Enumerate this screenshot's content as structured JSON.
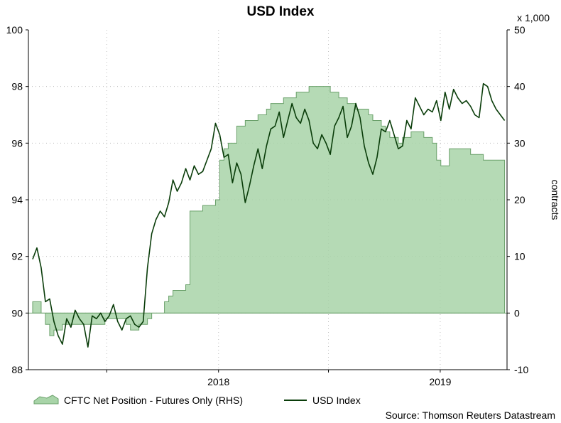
{
  "chart_data": {
    "type": "line",
    "title": "USD Index",
    "source": "Source: Thomson Reuters Datastream",
    "x_tick_labels": [
      "2018",
      "2019"
    ],
    "left_axis": {
      "ylim": [
        88,
        100
      ],
      "ticks": [
        "88",
        "90",
        "92",
        "94",
        "96",
        "98",
        "100"
      ]
    },
    "right_axis": {
      "ylim": [
        -10,
        50
      ],
      "ticks": [
        "-10",
        "0",
        "10",
        "20",
        "30",
        "40",
        "50"
      ],
      "ylabel": "contracts",
      "multiplier": "x 1,000"
    },
    "grid": true,
    "legend_position": "bottom",
    "series": [
      {
        "name": "CFTC Net Position - Futures Only (RHS)",
        "type": "area",
        "axis": "right",
        "color": "#a8d4a8",
        "x": [
          "2017-03-01",
          "2017-03-08",
          "2017-03-15",
          "2017-03-22",
          "2017-03-29",
          "2017-04-05",
          "2017-04-12",
          "2017-04-19",
          "2017-04-26",
          "2017-05-03",
          "2017-05-10",
          "2017-05-17",
          "2017-05-24",
          "2017-05-31",
          "2017-06-07",
          "2017-06-14",
          "2017-06-21",
          "2017-06-28",
          "2017-07-05",
          "2017-07-12",
          "2017-07-19",
          "2017-07-26",
          "2017-08-02",
          "2017-08-09",
          "2017-08-16",
          "2017-08-23",
          "2017-08-30",
          "2017-09-06",
          "2017-09-13",
          "2017-09-20",
          "2017-09-27",
          "2017-10-04",
          "2017-10-11",
          "2017-10-18",
          "2017-10-25",
          "2017-11-01",
          "2017-11-08",
          "2017-11-15",
          "2017-11-22",
          "2017-11-29",
          "2017-12-06",
          "2017-12-13",
          "2017-12-20",
          "2017-12-27",
          "2018-01-03",
          "2018-01-10",
          "2018-01-17",
          "2018-01-24",
          "2018-01-31",
          "2018-02-07",
          "2018-02-14",
          "2018-02-21",
          "2018-02-28",
          "2018-03-07",
          "2018-03-14",
          "2018-03-21",
          "2018-03-28",
          "2018-04-04",
          "2018-04-11",
          "2018-04-18",
          "2018-04-25",
          "2018-05-02",
          "2018-05-09",
          "2018-05-16",
          "2018-05-23",
          "2018-05-30",
          "2018-06-06",
          "2018-06-13",
          "2018-06-20",
          "2018-06-27",
          "2018-07-04",
          "2018-07-11",
          "2018-07-18",
          "2018-07-25",
          "2018-08-01",
          "2018-08-08",
          "2018-08-15",
          "2018-08-22",
          "2018-08-29",
          "2018-09-05",
          "2018-09-12",
          "2018-09-19",
          "2018-09-26",
          "2018-10-03",
          "2018-10-10",
          "2018-10-17",
          "2018-10-24",
          "2018-10-31",
          "2018-11-07",
          "2018-11-14",
          "2018-11-21",
          "2018-11-28",
          "2018-12-05",
          "2018-12-12",
          "2018-12-19",
          "2018-12-26",
          "2019-01-02",
          "2019-01-09",
          "2019-01-16",
          "2019-01-23",
          "2019-01-30",
          "2019-02-06",
          "2019-02-13",
          "2019-02-20",
          "2019-02-27",
          "2019-03-06",
          "2019-03-13",
          "2019-03-20",
          "2019-03-27",
          "2019-04-03",
          "2019-04-10",
          "2019-04-17"
        ],
        "values": [
          2,
          2,
          0,
          -2,
          -4,
          -3,
          -3,
          -2,
          -2,
          -2,
          -2,
          -2,
          -2,
          -2,
          -2,
          -2,
          -2,
          -1,
          -1,
          -1,
          -1,
          -1,
          -2,
          -3,
          -3,
          -2,
          -2,
          -1,
          0,
          0,
          0,
          2,
          3,
          4,
          4,
          4,
          5,
          18,
          18,
          18,
          19,
          19,
          19,
          20,
          27,
          29,
          30,
          30,
          33,
          33,
          34,
          34,
          34,
          35,
          35,
          36,
          37,
          37,
          37,
          38,
          38,
          38,
          39,
          39,
          39,
          40,
          40,
          40,
          40,
          40,
          39,
          39,
          38,
          38,
          37,
          37,
          36,
          36,
          36,
          35,
          34,
          34,
          33,
          32,
          31,
          31,
          30,
          31,
          31,
          32,
          32,
          32,
          31,
          31,
          30,
          27,
          26,
          26,
          29,
          29,
          29,
          29,
          29,
          28,
          28,
          28,
          27,
          27,
          27,
          27,
          27,
          26
        ]
      },
      {
        "name": "USD Index",
        "type": "line",
        "axis": "left",
        "color": "#0a3d0a",
        "x": [
          "2017-03-01",
          "2017-03-08",
          "2017-03-15",
          "2017-03-22",
          "2017-03-29",
          "2017-04-05",
          "2017-04-12",
          "2017-04-19",
          "2017-04-26",
          "2017-05-03",
          "2017-05-10",
          "2017-05-17",
          "2017-05-24",
          "2017-05-31",
          "2017-06-07",
          "2017-06-14",
          "2017-06-21",
          "2017-06-28",
          "2017-07-05",
          "2017-07-12",
          "2017-07-19",
          "2017-07-26",
          "2017-08-02",
          "2017-08-09",
          "2017-08-16",
          "2017-08-23",
          "2017-08-30",
          "2017-09-06",
          "2017-09-13",
          "2017-09-20",
          "2017-09-27",
          "2017-10-04",
          "2017-10-11",
          "2017-10-18",
          "2017-10-25",
          "2017-11-01",
          "2017-11-08",
          "2017-11-15",
          "2017-11-22",
          "2017-11-29",
          "2017-12-06",
          "2017-12-13",
          "2017-12-20",
          "2017-12-27",
          "2018-01-03",
          "2018-01-10",
          "2018-01-17",
          "2018-01-24",
          "2018-01-31",
          "2018-02-07",
          "2018-02-14",
          "2018-02-21",
          "2018-02-28",
          "2018-03-07",
          "2018-03-14",
          "2018-03-21",
          "2018-03-28",
          "2018-04-04",
          "2018-04-11",
          "2018-04-18",
          "2018-04-25",
          "2018-05-02",
          "2018-05-09",
          "2018-05-16",
          "2018-05-23",
          "2018-05-30",
          "2018-06-06",
          "2018-06-13",
          "2018-06-20",
          "2018-06-27",
          "2018-07-04",
          "2018-07-11",
          "2018-07-18",
          "2018-07-25",
          "2018-08-01",
          "2018-08-08",
          "2018-08-15",
          "2018-08-22",
          "2018-08-29",
          "2018-09-05",
          "2018-09-12",
          "2018-09-19",
          "2018-09-26",
          "2018-10-03",
          "2018-10-10",
          "2018-10-17",
          "2018-10-24",
          "2018-10-31",
          "2018-11-07",
          "2018-11-14",
          "2018-11-21",
          "2018-11-28",
          "2018-12-05",
          "2018-12-12",
          "2018-12-19",
          "2018-12-26",
          "2019-01-02",
          "2019-01-09",
          "2019-01-16",
          "2019-01-23",
          "2019-01-30",
          "2019-02-06",
          "2019-02-13",
          "2019-02-20",
          "2019-02-27",
          "2019-03-06",
          "2019-03-13",
          "2019-03-20",
          "2019-03-27",
          "2019-04-03",
          "2019-04-10",
          "2019-04-17"
        ],
        "values": [
          91.9,
          92.3,
          91.6,
          90.4,
          90.5,
          89.7,
          89.2,
          88.9,
          89.8,
          89.5,
          90.1,
          89.8,
          89.6,
          88.8,
          89.9,
          89.8,
          90.0,
          89.7,
          89.9,
          90.3,
          89.7,
          89.4,
          89.8,
          89.9,
          89.6,
          89.5,
          89.7,
          91.6,
          92.8,
          93.3,
          93.6,
          93.4,
          93.9,
          94.7,
          94.3,
          94.6,
          95.1,
          94.7,
          95.2,
          94.9,
          95.0,
          95.4,
          95.8,
          96.7,
          96.3,
          95.5,
          95.6,
          94.6,
          95.3,
          94.9,
          93.9,
          94.5,
          95.2,
          95.8,
          95.1,
          95.9,
          96.5,
          96.6,
          97.1,
          96.2,
          96.8,
          97.4,
          96.9,
          96.7,
          97.2,
          96.8,
          96.0,
          95.8,
          96.3,
          96.0,
          95.6,
          96.6,
          96.9,
          97.3,
          96.2,
          96.6,
          97.4,
          96.9,
          95.9,
          95.3,
          94.9,
          95.5,
          96.5,
          96.4,
          96.8,
          96.3,
          95.8,
          95.9,
          96.8,
          96.5,
          97.6,
          97.3,
          97.0,
          97.2,
          97.1,
          97.5,
          96.8,
          97.8,
          97.2,
          97.9,
          97.6,
          97.4,
          97.5,
          97.3,
          97.0,
          96.9,
          98.1,
          98.0,
          97.5,
          97.2,
          97.0,
          96.8
        ]
      }
    ]
  }
}
